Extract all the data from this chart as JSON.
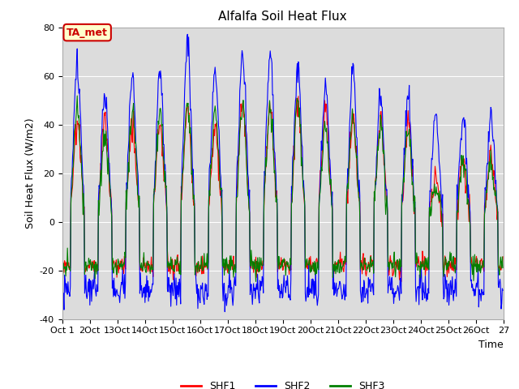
{
  "title": "Alfalfa Soil Heat Flux",
  "ylabel": "Soil Heat Flux (W/m2)",
  "xlabel": "Time",
  "ylim": [
    -40,
    80
  ],
  "annotation_text": "TA_met",
  "legend_labels": [
    "SHF1",
    "SHF2",
    "SHF3"
  ],
  "line_colors": [
    "red",
    "blue",
    "green"
  ],
  "plot_bg_color": "#dcdcdc",
  "fig_bg_color": "#ffffff",
  "grid_color": "#ffffff",
  "annotation_facecolor": "#ffffcc",
  "annotation_edgecolor": "#cc0000",
  "annotation_textcolor": "#cc0000",
  "x_tick_labels": [
    "Oct 1",
    "2Oct",
    "13Oct",
    "14Oct",
    "15Oct",
    "16Oct",
    "17Oct",
    "18Oct",
    "19Oct",
    "20Oct",
    "21Oct",
    "22Oct",
    "23Oct",
    "24Oct",
    "25Oct",
    "26Oct",
    "27"
  ],
  "y_ticks": [
    -40,
    -20,
    0,
    20,
    40,
    60,
    80
  ],
  "n_days": 16,
  "ppd": 48,
  "shf1_peaks": [
    42,
    43,
    40,
    40,
    48,
    40,
    50,
    47,
    50,
    45,
    43,
    42,
    40,
    20,
    28,
    28
  ],
  "shf2_peaks": [
    65,
    52,
    60,
    62,
    73,
    65,
    70,
    70,
    65,
    57,
    63,
    52,
    51,
    44,
    43,
    43
  ],
  "shf3_peaks": [
    46,
    35,
    45,
    44,
    50,
    44,
    48,
    47,
    48,
    38,
    42,
    40,
    38,
    15,
    25,
    25
  ],
  "shf1_night": -18,
  "shf2_night": -28,
  "shf3_night": -18,
  "title_fontsize": 11,
  "axis_label_fontsize": 9,
  "tick_fontsize": 8,
  "legend_fontsize": 9,
  "linewidth": 0.8
}
